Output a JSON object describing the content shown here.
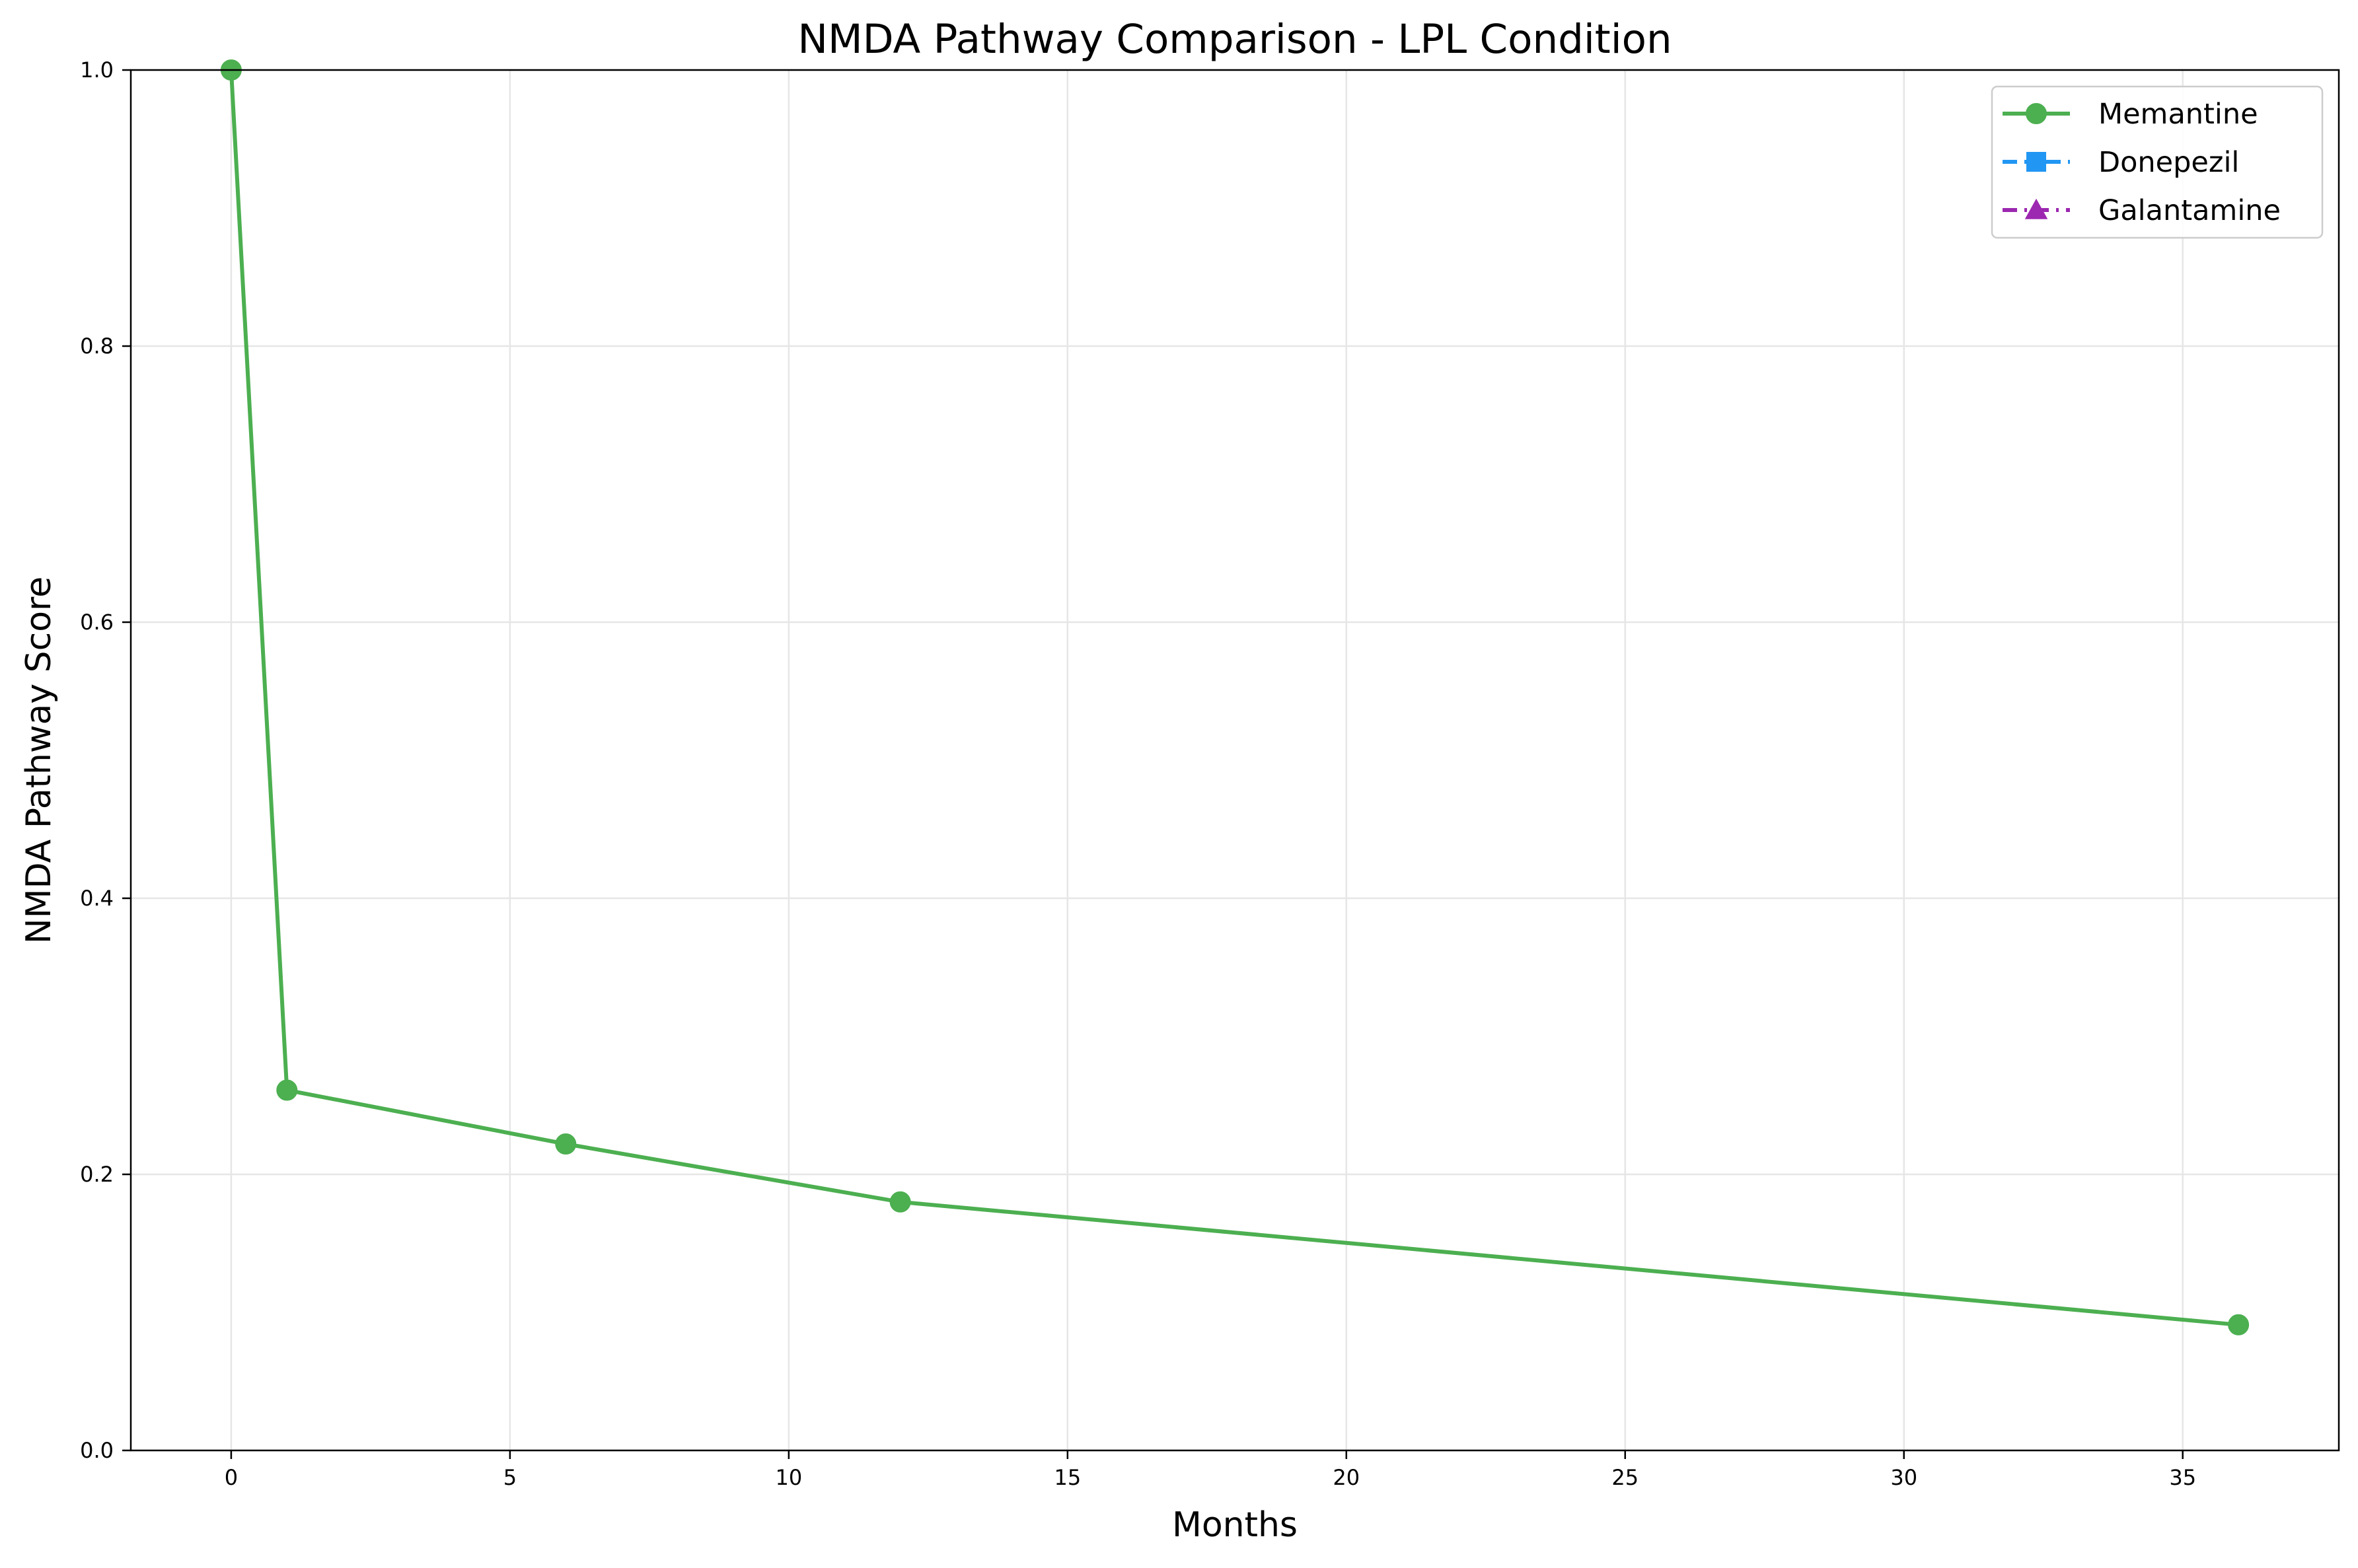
{
  "chart_data": {
    "type": "line",
    "title": "NMDA Pathway Comparison - LPL Condition",
    "xlabel": "Months",
    "ylabel": "NMDA Pathway Score",
    "xlim": [
      -1.8,
      37.8
    ],
    "ylim": [
      0.0,
      1.0
    ],
    "x_ticks": [
      0,
      5,
      10,
      15,
      20,
      25,
      30,
      35
    ],
    "y_ticks": [
      0.0,
      0.2,
      0.4,
      0.6,
      0.8,
      1.0
    ],
    "x_tick_labels": [
      "0",
      "5",
      "10",
      "15",
      "20",
      "25",
      "30",
      "35"
    ],
    "y_tick_labels": [
      "0.0",
      "0.2",
      "0.4",
      "0.6",
      "0.8",
      "1.0"
    ],
    "grid": true,
    "legend_position": "top-right",
    "series": [
      {
        "name": "Memantine",
        "color": "#4caf50",
        "marker": "circle",
        "line_style": "solid",
        "x": [
          0,
          1,
          6,
          12,
          36
        ],
        "y": [
          1.0,
          0.261,
          0.222,
          0.18,
          0.091
        ]
      },
      {
        "name": "Donepezil",
        "color": "#2196f3",
        "marker": "square",
        "line_style": "dashed",
        "x": [],
        "y": []
      },
      {
        "name": "Galantamine",
        "color": "#9c27b0",
        "marker": "triangle",
        "line_style": "dashdot",
        "x": [],
        "y": []
      }
    ]
  }
}
